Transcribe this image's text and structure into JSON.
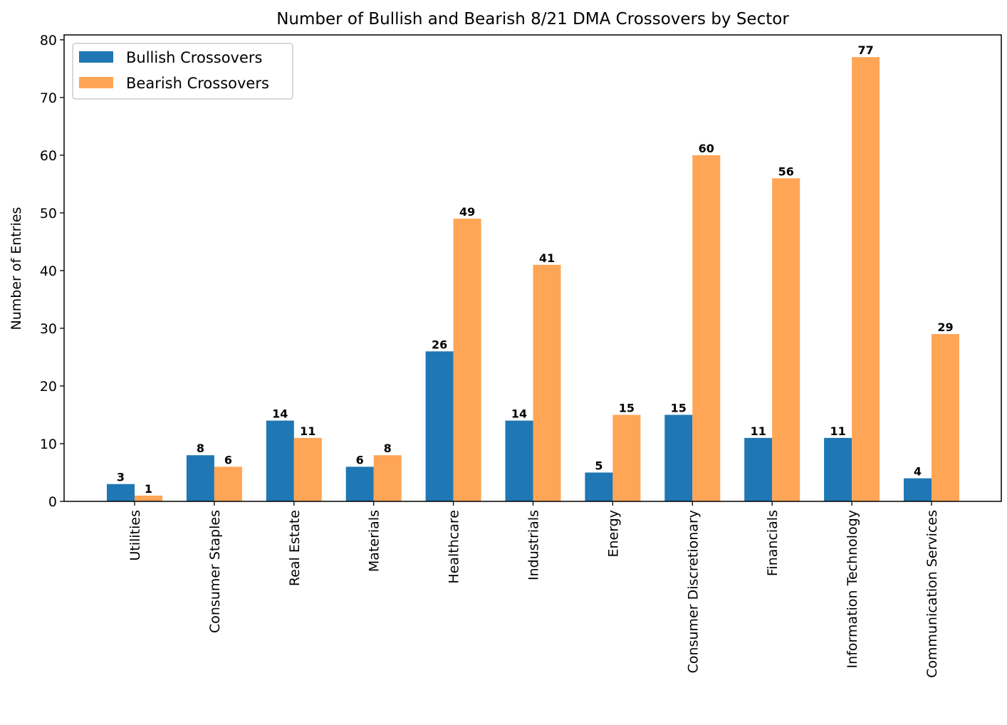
{
  "chart_data": {
    "type": "bar",
    "title": "Number of Bullish and Bearish 8/21 DMA Crossovers by Sector",
    "xlabel": "",
    "ylabel": "Number of Entries",
    "ylim": [
      0,
      80.85
    ],
    "yticks": [
      0,
      10,
      20,
      30,
      40,
      50,
      60,
      70,
      80
    ],
    "grid": false,
    "legend_position": "top-left",
    "categories": [
      "Utilities",
      "Consumer Staples",
      "Real Estate",
      "Materials",
      "Healthcare",
      "Industrials",
      "Energy",
      "Consumer Discretionary",
      "Financials",
      "Information Technology",
      "Communication Services"
    ],
    "series": [
      {
        "name": "Bullish Crossovers",
        "color": "#1f77b4",
        "values": [
          3,
          8,
          14,
          6,
          26,
          14,
          5,
          15,
          11,
          11,
          4
        ]
      },
      {
        "name": "Bearish Crossovers",
        "color": "#ffa556",
        "values": [
          1,
          6,
          11,
          8,
          49,
          41,
          15,
          60,
          56,
          77,
          29
        ]
      }
    ]
  }
}
